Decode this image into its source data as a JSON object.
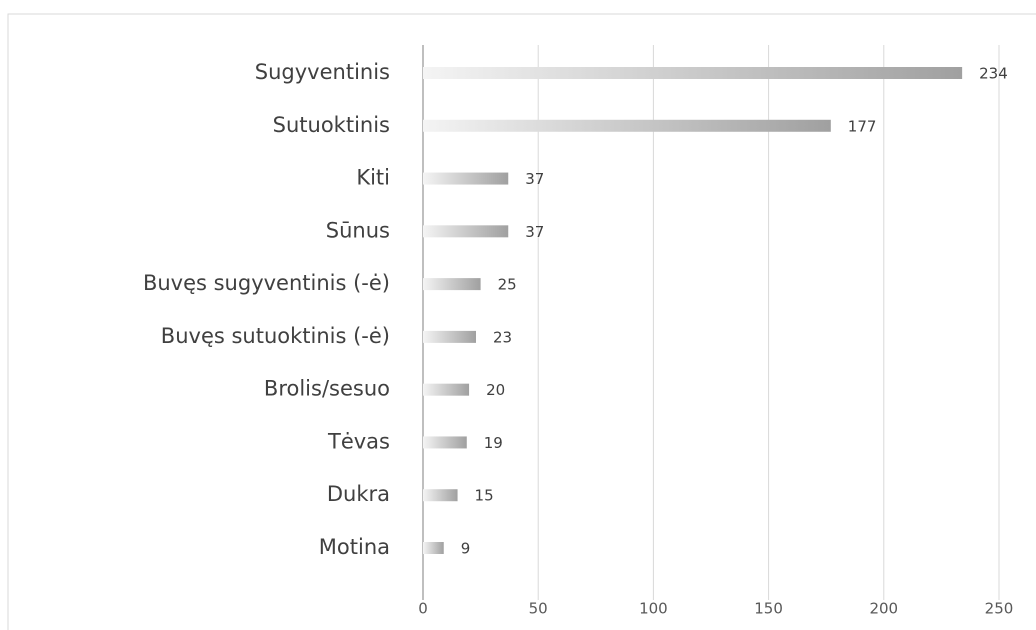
{
  "chart_data": {
    "type": "bar",
    "orientation": "horizontal",
    "categories": [
      "Sugyventinis",
      "Sutuoktinis",
      "Kiti",
      "Sūnus",
      "Buvęs sugyventinis (-ė)",
      "Buvęs sutuoktinis (-ė)",
      "Brolis/sesuo",
      "Tėvas",
      "Dukra",
      "Motina"
    ],
    "values": [
      234,
      177,
      37,
      37,
      25,
      23,
      20,
      19,
      15,
      9
    ],
    "color": "#a6a6a6",
    "xlim": [
      0,
      250
    ],
    "xticks": [
      0,
      50,
      100,
      150,
      200,
      250
    ],
    "grid": true
  }
}
